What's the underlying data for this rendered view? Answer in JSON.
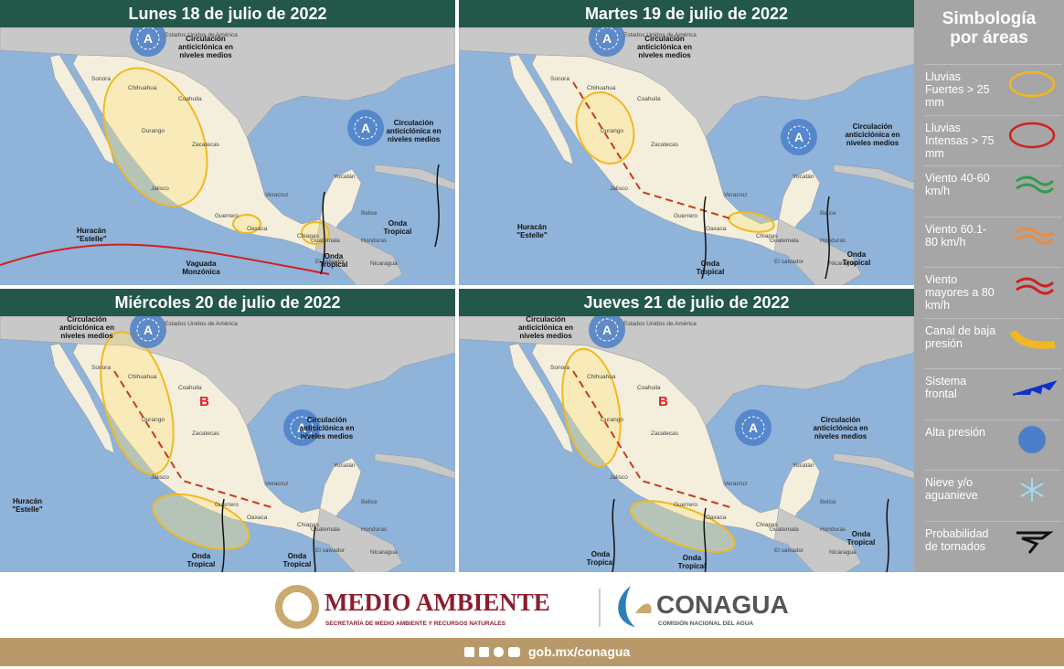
{
  "panels": [
    {
      "title": "Lunes 18 de julio de 2022",
      "annotations": [
        "Circulación anticiclónica en niveles medios",
        "Circulación anticiclónica en niveles medios",
        "Huracán \"Estelle\"",
        "Vaguada Monzónica",
        "Onda Tropical",
        "Onda Tropical"
      ]
    },
    {
      "title": "Martes 19 de julio de 2022",
      "annotations": [
        "Circulación anticiclónica en niveles medios",
        "Circulación anticiclónica en niveles medios",
        "Huracán \"Estelle\"",
        "Onda Tropical",
        "Onda Tropical"
      ]
    },
    {
      "title": "Miércoles 20 de julio de 2022",
      "annotations": [
        "Circulación anticiclónica en niveles medios",
        "Circulación anticiclónica en niveles medios",
        "Huracán \"Estelle\"",
        "Onda Tropical",
        "Onda Tropical",
        "B"
      ]
    },
    {
      "title": "Jueves 21 de julio de 2022",
      "annotations": [
        "Circulación anticiclónica en niveles medios",
        "Circulación anticiclónica en niveles medios",
        "Onda Tropical",
        "Onda Tropical",
        "Onda Tropical",
        "B"
      ]
    }
  ],
  "places": [
    "Estados Unidos de América",
    "Sonora",
    "Chihuahua",
    "Coahuila",
    "Durango",
    "Zacatecas",
    "Jalisco",
    "Guerrero",
    "Oaxaca",
    "Chiapas",
    "Veracruz",
    "Yucatán",
    "Belice",
    "Guatemala",
    "Honduras",
    "Nicaragua",
    "El salvador"
  ],
  "symbols": {
    "high": "A"
  },
  "legend": {
    "title": "Simbología por áreas",
    "items": [
      "Lluvias Fuertes > 25 mm",
      "Lluvias Intensas > 75 mm",
      "Viento 40-60 km/h",
      "Viento 60.1-80 km/h",
      "Viento mayores a 80 km/h",
      "Canal de baja presión",
      "Sistema frontal",
      "Alta presión",
      "Nieve y/o aguanieve",
      "Probabilidad de tornados"
    ]
  },
  "footer": {
    "brand1": "MEDIO AMBIENTE",
    "brand1_sub": "SECRETARÍA DE MEDIO AMBIENTE Y RECURSOS NATURALES",
    "brand2": "CONAGUA",
    "brand2_sub": "COMISIÓN NACIONAL DEL AGUA",
    "url": "gob.mx/conagua"
  }
}
